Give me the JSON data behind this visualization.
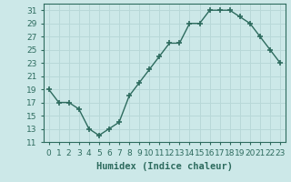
{
  "x": [
    0,
    1,
    2,
    3,
    4,
    5,
    6,
    7,
    8,
    9,
    10,
    11,
    12,
    13,
    14,
    15,
    16,
    17,
    18,
    19,
    20,
    21,
    22,
    23
  ],
  "y": [
    19,
    17,
    17,
    16,
    13,
    12,
    13,
    14,
    18,
    20,
    22,
    24,
    26,
    26,
    29,
    29,
    31,
    31,
    31,
    30,
    29,
    27,
    25,
    23
  ],
  "line_color": "#2d6b5e",
  "marker": "+",
  "marker_size": 4,
  "marker_linewidth": 1.2,
  "line_width": 1.0,
  "bg_color": "#cce8e8",
  "grid_color": "#b8d8d8",
  "xlabel": "Humidex (Indice chaleur)",
  "xlim": [
    -0.5,
    23.5
  ],
  "ylim": [
    11,
    32
  ],
  "yticks": [
    11,
    13,
    15,
    17,
    19,
    21,
    23,
    25,
    27,
    29,
    31
  ],
  "xtick_labels": [
    "0",
    "1",
    "2",
    "3",
    "4",
    "5",
    "6",
    "7",
    "8",
    "9",
    "10",
    "11",
    "12",
    "13",
    "14",
    "15",
    "16",
    "17",
    "18",
    "19",
    "20",
    "21",
    "22",
    "23"
  ],
  "xlabel_fontsize": 7.5,
  "tick_fontsize": 6.5
}
